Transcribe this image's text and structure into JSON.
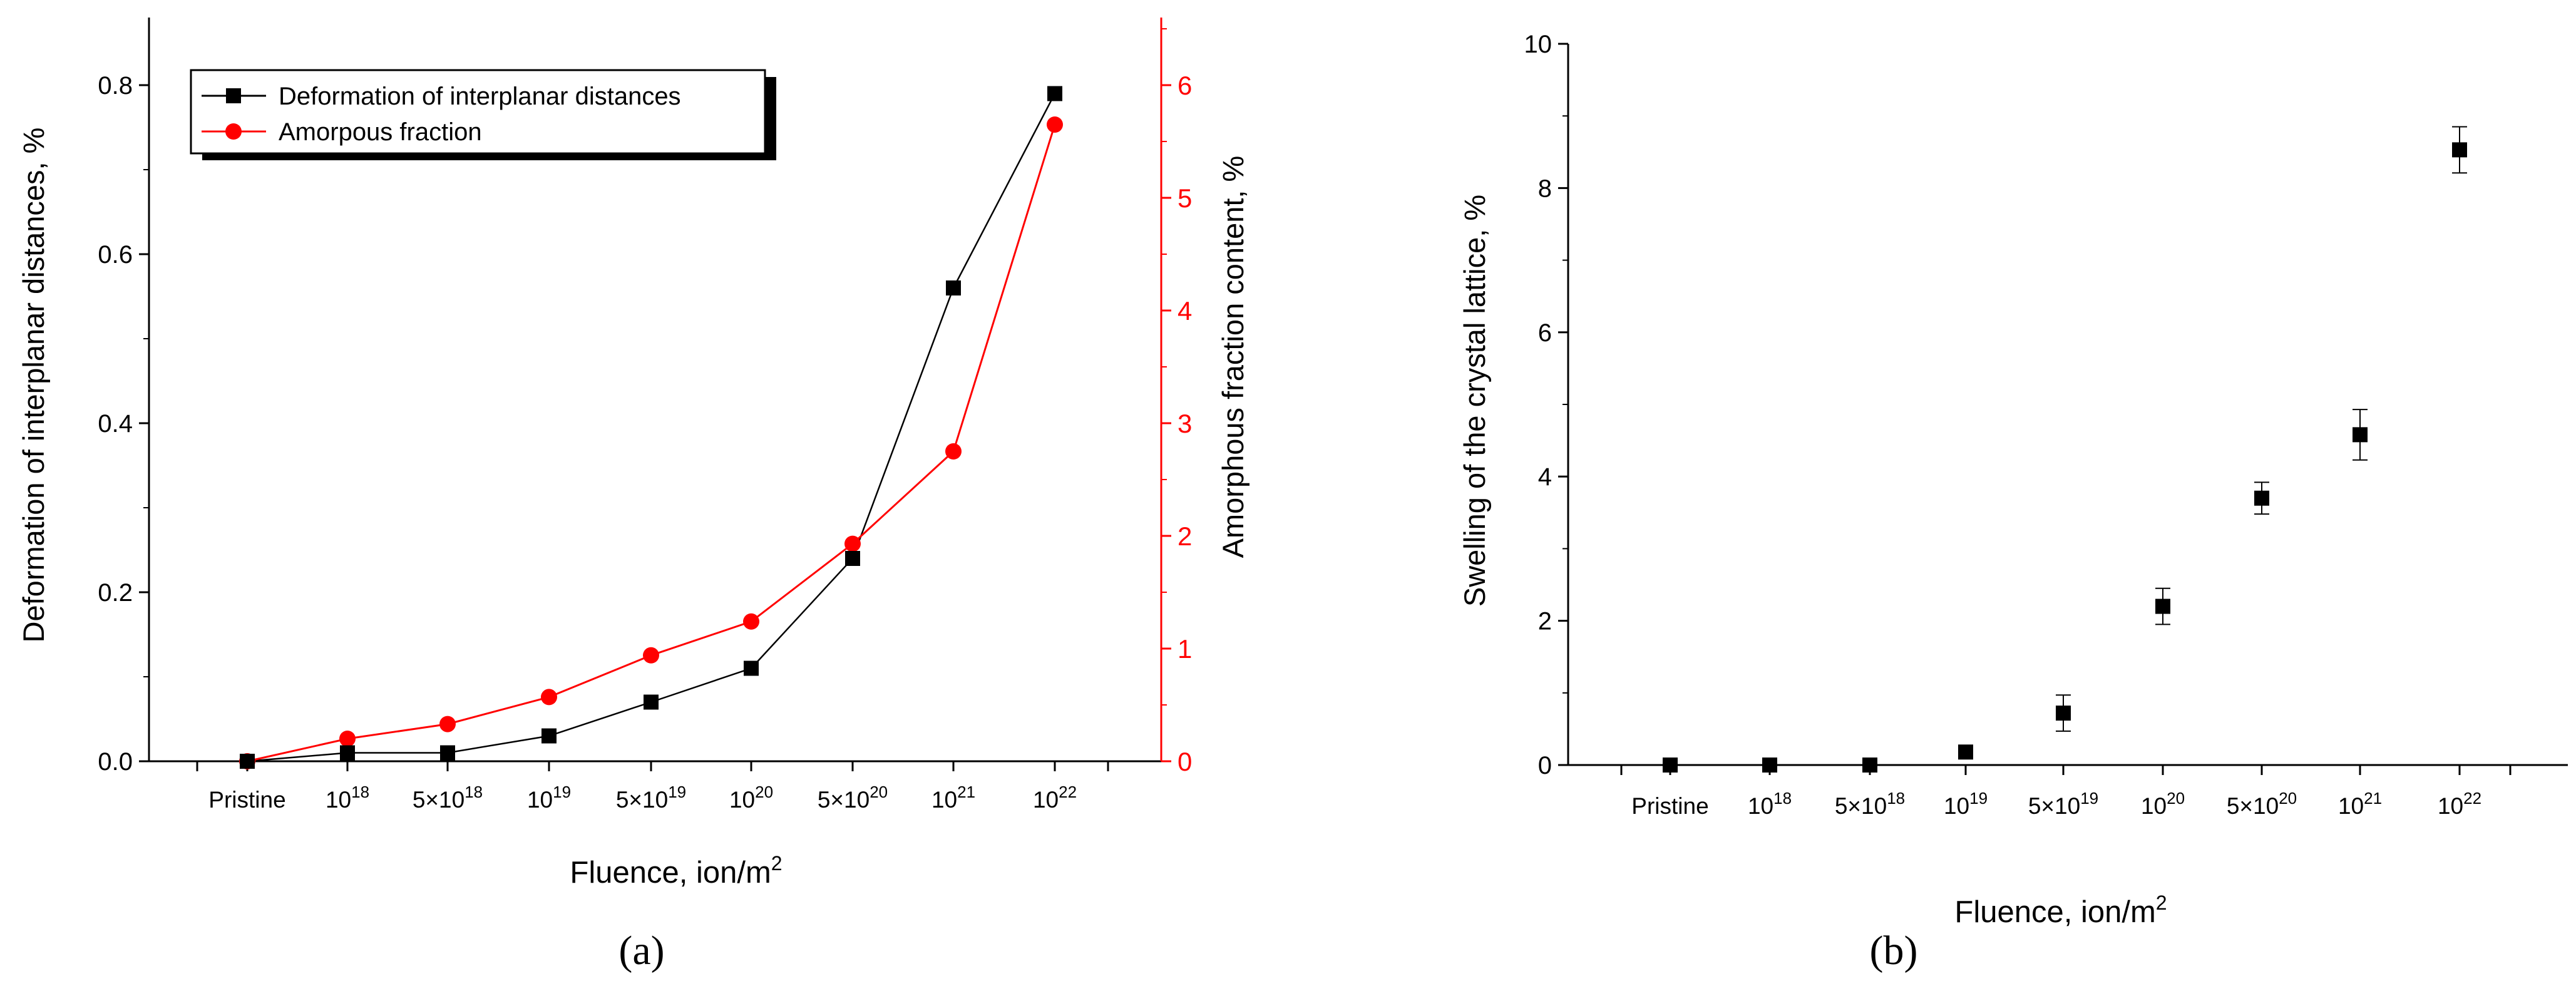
{
  "colors": {
    "black_series": "#000000",
    "red_series": "#ff0000",
    "background": "#ffffff"
  },
  "chart_data": [
    {
      "panel_label": "(a)",
      "type": "line",
      "categories": [
        "Pristine",
        "10^18",
        "5×10^18",
        "10^19",
        "5×10^19",
        "10^20",
        "5×10^20",
        "10^21",
        "10^22"
      ],
      "category_labels": [
        {
          "base": "Pristine",
          "exp": ""
        },
        {
          "base": "10",
          "exp": "18"
        },
        {
          "base": "5×10",
          "exp": "18"
        },
        {
          "base": "10",
          "exp": "19"
        },
        {
          "base": "5×10",
          "exp": "19"
        },
        {
          "base": "10",
          "exp": "20"
        },
        {
          "base": "5×10",
          "exp": "20"
        },
        {
          "base": "10",
          "exp": "21"
        },
        {
          "base": "10",
          "exp": "22"
        }
      ],
      "xlabel": {
        "base": "Fluence, ion/m",
        "exp": "2"
      },
      "ylabel": "Deformation of interplanar distances, %",
      "ylabel_right": "Amorphous fraction content, %",
      "ylim": [
        0,
        0.88
      ],
      "ylim_right": [
        0,
        6.6
      ],
      "yticks": [
        "0.0",
        "0.2",
        "0.4",
        "0.6",
        "0.8"
      ],
      "yticks_right": [
        "0",
        "1",
        "2",
        "3",
        "4",
        "5",
        "6"
      ],
      "legend_position": "top-left",
      "series": [
        {
          "name": "Deformation of interplanar distances",
          "axis": "left",
          "marker": "square",
          "color": "#000000",
          "values": [
            0,
            0.01,
            0.01,
            0.03,
            0.07,
            0.11,
            0.24,
            0.56,
            0.79
          ]
        },
        {
          "name": "Amorpous fraction",
          "axis": "right",
          "marker": "circle",
          "color": "#ff0000",
          "values": [
            0,
            0.2,
            0.33,
            0.57,
            0.94,
            1.24,
            1.93,
            2.75,
            5.65
          ]
        }
      ]
    },
    {
      "panel_label": "(b)",
      "type": "scatter",
      "categories": [
        "Pristine",
        "10^18",
        "5×10^18",
        "10^19",
        "5×10^19",
        "10^20",
        "5×10^20",
        "10^21",
        "10^22"
      ],
      "category_labels": [
        {
          "base": "Pristine",
          "exp": ""
        },
        {
          "base": "10",
          "exp": "18"
        },
        {
          "base": "5×10",
          "exp": "18"
        },
        {
          "base": "10",
          "exp": "19"
        },
        {
          "base": "5×10",
          "exp": "19"
        },
        {
          "base": "10",
          "exp": "20"
        },
        {
          "base": "5×10",
          "exp": "20"
        },
        {
          "base": "10",
          "exp": "21"
        },
        {
          "base": "10",
          "exp": "22"
        }
      ],
      "xlabel": {
        "base": "Fluence, ion/m",
        "exp": "2"
      },
      "ylabel": "Swelling of the crystal lattice, %",
      "ylim": [
        0,
        10
      ],
      "yticks": [
        "0",
        "2",
        "4",
        "6",
        "8",
        "10"
      ],
      "series": [
        {
          "marker": "square",
          "color": "#000000",
          "values": [
            0,
            0,
            0,
            0.18,
            0.72,
            2.2,
            3.7,
            4.58,
            8.53
          ],
          "errors": [
            0,
            0,
            0,
            0,
            0.25,
            0.25,
            0.22,
            0.35,
            0.32
          ]
        }
      ]
    }
  ]
}
